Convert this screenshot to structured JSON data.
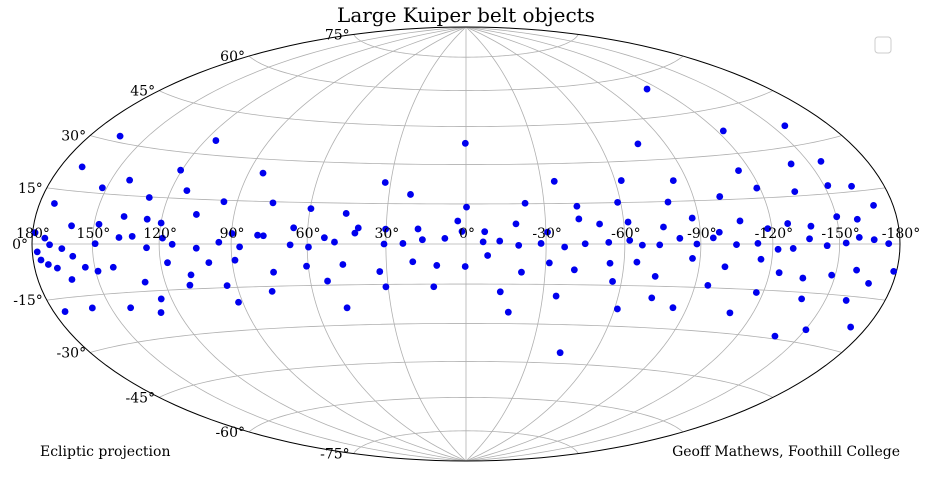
{
  "chart_data": {
    "type": "scatter",
    "projection": "hammer-aitoff",
    "title": "Large Kuiper belt objects",
    "lon_ticks": [
      "180°",
      "150°",
      "120°",
      "90°",
      "60°",
      "30°",
      "0°",
      "-30°",
      "-60°",
      "-90°",
      "-120°",
      "-150°",
      "-180°"
    ],
    "lon_tick_values": [
      180,
      150,
      120,
      90,
      60,
      30,
      0,
      -30,
      -60,
      -90,
      -120,
      -150,
      -180
    ],
    "lat_ticks": [
      "75°",
      "60°",
      "45°",
      "30°",
      "15°",
      "0°",
      "-15°",
      "-30°",
      "-45°",
      "-60°",
      "-75°"
    ],
    "lat_tick_values": [
      75,
      60,
      45,
      30,
      15,
      0,
      -15,
      -30,
      -45,
      -60,
      -75
    ],
    "lon_range": [
      180,
      -180
    ],
    "lat_range": [
      -90,
      90
    ],
    "grid": true,
    "legend": "top-right (empty)",
    "colors": {
      "points": "#0000ee",
      "grid": "#b0b0b0",
      "outline": "#000000"
    },
    "series": [
      {
        "values": [
          [
            178.7,
            3.0
          ],
          [
            177.4,
            -2.1
          ],
          [
            175.9,
            -4.3
          ],
          [
            173.4,
            1.6
          ],
          [
            172.5,
            -5.6
          ],
          [
            170.9,
            -0.2
          ],
          [
            168.3,
            -6.7
          ],
          [
            164.8,
            -1.3
          ],
          [
            159.7,
            -3.5
          ],
          [
            154.5,
            -6.8
          ],
          [
            148.7,
            0.1
          ],
          [
            137.8,
            2.0
          ],
          [
            131.9,
            2.4
          ],
          [
            125.5,
            -1.2
          ],
          [
            118.6,
            1.9
          ],
          [
            114.4,
            -0.1
          ],
          [
            104.3,
            -1.4
          ],
          [
            95.0,
            0.6
          ],
          [
            86.6,
            -1.0
          ],
          [
            79.5,
            3.1
          ],
          [
            66.6,
            -0.3
          ],
          [
            59.5,
            -1.1
          ],
          [
            49.5,
            0.7
          ],
          [
            41.8,
            4.0
          ],
          [
            30.7,
            0.0
          ],
          [
            23.6,
            0.2
          ],
          [
            16.3,
            1.6
          ],
          [
            7.9,
            2.1
          ],
          [
            1.5,
            4.7
          ],
          [
            -6.4,
            0.8
          ],
          [
            -12.6,
            1.1
          ],
          [
            -19.7,
            -0.5
          ],
          [
            -28.1,
            0.2
          ],
          [
            -37.0,
            -1.1
          ],
          [
            -44.8,
            0.1
          ],
          [
            -53.8,
            0.6
          ],
          [
            -61.9,
            1.3
          ],
          [
            -66.8,
            -0.4
          ],
          [
            -73.6,
            -0.3
          ],
          [
            -81.6,
            2.0
          ],
          [
            -88.4,
            0.0
          ],
          [
            -95.1,
            2.1
          ],
          [
            -104.6,
            -0.2
          ],
          [
            -113.6,
            0.2
          ],
          [
            -122.3,
            -1.7
          ],
          [
            -128.9,
            -1.4
          ],
          [
            -136.2,
            1.6
          ],
          [
            -144.2,
            -0.5
          ],
          [
            -153.1,
            0.3
          ],
          [
            -159.5,
            1.9
          ],
          [
            -166.8,
            1.2
          ],
          [
            -174.1,
            0.1
          ],
          [
            -178.5,
            -7.3
          ],
          [
            172.3,
            11.1
          ],
          [
            160.7,
            5.2
          ],
          [
            147.7,
            5.9
          ],
          [
            136.9,
            8.5
          ],
          [
            126.3,
            7.9
          ],
          [
            119.9,
            6.8
          ],
          [
            105.6,
            9.9
          ],
          [
            89.8,
            3.6
          ],
          [
            77.2,
            2.9
          ],
          [
            65.5,
            5.8
          ],
          [
            53.4,
            2.3
          ],
          [
            40.6,
            5.9
          ],
          [
            30.2,
            5.5
          ],
          [
            18.0,
            5.6
          ],
          [
            3.1,
            8.6
          ],
          [
            -7.0,
            4.6
          ],
          [
            -18.8,
            7.5
          ],
          [
            -30.6,
            4.4
          ],
          [
            -42.8,
            9.2
          ],
          [
            -50.6,
            7.3
          ],
          [
            -61.7,
            7.9
          ],
          [
            -75.4,
            6.0
          ],
          [
            -87.4,
            9.0
          ],
          [
            -97.7,
            4.0
          ],
          [
            -106.9,
            7.7
          ],
          [
            -118.2,
            5.0
          ],
          [
            -127.2,
            6.5
          ],
          [
            -137.4,
            5.5
          ],
          [
            -150.2,
            8.1
          ],
          [
            -159.8,
            7.1
          ],
          [
            -169.9,
            10.7
          ],
          [
            162.6,
            -10.1
          ],
          [
            148.9,
            -8.1
          ],
          [
            141.4,
            -7.1
          ],
          [
            128.8,
            -12.1
          ],
          [
            117.0,
            -6.1
          ],
          [
            108.0,
            -10.3
          ],
          [
            99.6,
            -6.3
          ],
          [
            88.8,
            -5.6
          ],
          [
            74.0,
            -10.0
          ],
          [
            60.7,
            -8.0
          ],
          [
            46.6,
            -7.5
          ],
          [
            32.7,
            -10.2
          ],
          [
            20.0,
            -6.6
          ],
          [
            11.0,
            -8.0
          ],
          [
            0.3,
            -8.4
          ],
          [
            -8.1,
            -4.3
          ],
          [
            -21.0,
            -10.5
          ],
          [
            -31.4,
            -7.0
          ],
          [
            -41.1,
            -9.5
          ],
          [
            -54.6,
            -7.0
          ],
          [
            -65.0,
            -6.5
          ],
          [
            -73.0,
            -11.5
          ],
          [
            -86.9,
            -5.0
          ],
          [
            -100.6,
            -7.7
          ],
          [
            -115.3,
            -5.0
          ],
          [
            -124.2,
            -9.2
          ],
          [
            -135.4,
            -10.6
          ],
          [
            -148.3,
            -9.3
          ],
          [
            -159.6,
            -7.5
          ],
          [
            -167.5,
            -11.0
          ],
          [
            152.1,
            16.7
          ],
          [
            141.2,
            19.7
          ],
          [
            128.3,
            14.8
          ],
          [
            113.0,
            17.7
          ],
          [
            95.5,
            14.5
          ],
          [
            75.3,
            14.6
          ],
          [
            59.7,
            12.8
          ],
          [
            45.7,
            11.2
          ],
          [
            21.6,
            18.5
          ],
          [
            -0.2,
            13.8
          ],
          [
            -22.7,
            15.2
          ],
          [
            -42.6,
            13.9
          ],
          [
            -58.8,
            15.1
          ],
          [
            -79.0,
            14.8
          ],
          [
            -101.1,
            16.1
          ],
          [
            -118.6,
            18.3
          ],
          [
            -134.9,
            16.4
          ],
          [
            -151.8,
            17.4
          ],
          [
            -163.2,
            16.5
          ],
          [
            159.1,
            -18.6
          ],
          [
            140.7,
            -19.7
          ],
          [
            124.6,
            -17.7
          ],
          [
            109.7,
            -13.7
          ],
          [
            94.1,
            -14.3
          ],
          [
            76.3,
            -16.8
          ],
          [
            53.3,
            -13.5
          ],
          [
            30.9,
            -15.9
          ],
          [
            12.4,
            -16.0
          ],
          [
            -13.3,
            -17.9
          ],
          [
            -35.3,
            -19.3
          ],
          [
            -56.5,
            -13.6
          ],
          [
            -73.8,
            -19.2
          ],
          [
            -95.3,
            -14.2
          ],
          [
            -117.0,
            -15.9
          ],
          [
            -138.6,
            -17.0
          ],
          [
            -160.2,
            -16.3
          ],
          [
            168.7,
            21.8
          ],
          [
            120.6,
            24.2
          ],
          [
            83.8,
            25.0
          ],
          [
            32.2,
            22.9
          ],
          [
            -35.3,
            23.3
          ],
          [
            -62.6,
            23.0
          ],
          [
            -84.2,
            22.3
          ],
          [
            -114.7,
            24.4
          ],
          [
            -141.0,
            24.9
          ],
          [
            -156.4,
            24.5
          ],
          [
            174.0,
            -18.6
          ],
          [
            128.0,
            -22.0
          ],
          [
            91.8,
            -20.2
          ],
          [
            47.8,
            -23.5
          ],
          [
            -17.1,
            -25.6
          ],
          [
            -61.2,
            -23.6
          ],
          [
            -84.1,
            -22.4
          ],
          [
            -109.7,
            -23.1
          ],
          [
            -150.3,
            -26.0
          ],
          [
            -171.5,
            -23.3
          ],
          [
            164.1,
            31.7
          ],
          [
            115.0,
            34.9
          ],
          [
            0.3,
            38.3
          ],
          [
            -77.5,
            36.1
          ],
          [
            -123.1,
            37.7
          ],
          [
            -156.7,
            36.0
          ],
          [
            -43.9,
            -40.8
          ],
          [
            -138.0,
            -29.1
          ],
          [
            -113.1,
            55.0
          ]
        ]
      }
    ],
    "annotations": [
      "Ecliptic projection",
      "Geoff Mathews, Foothill College"
    ]
  }
}
